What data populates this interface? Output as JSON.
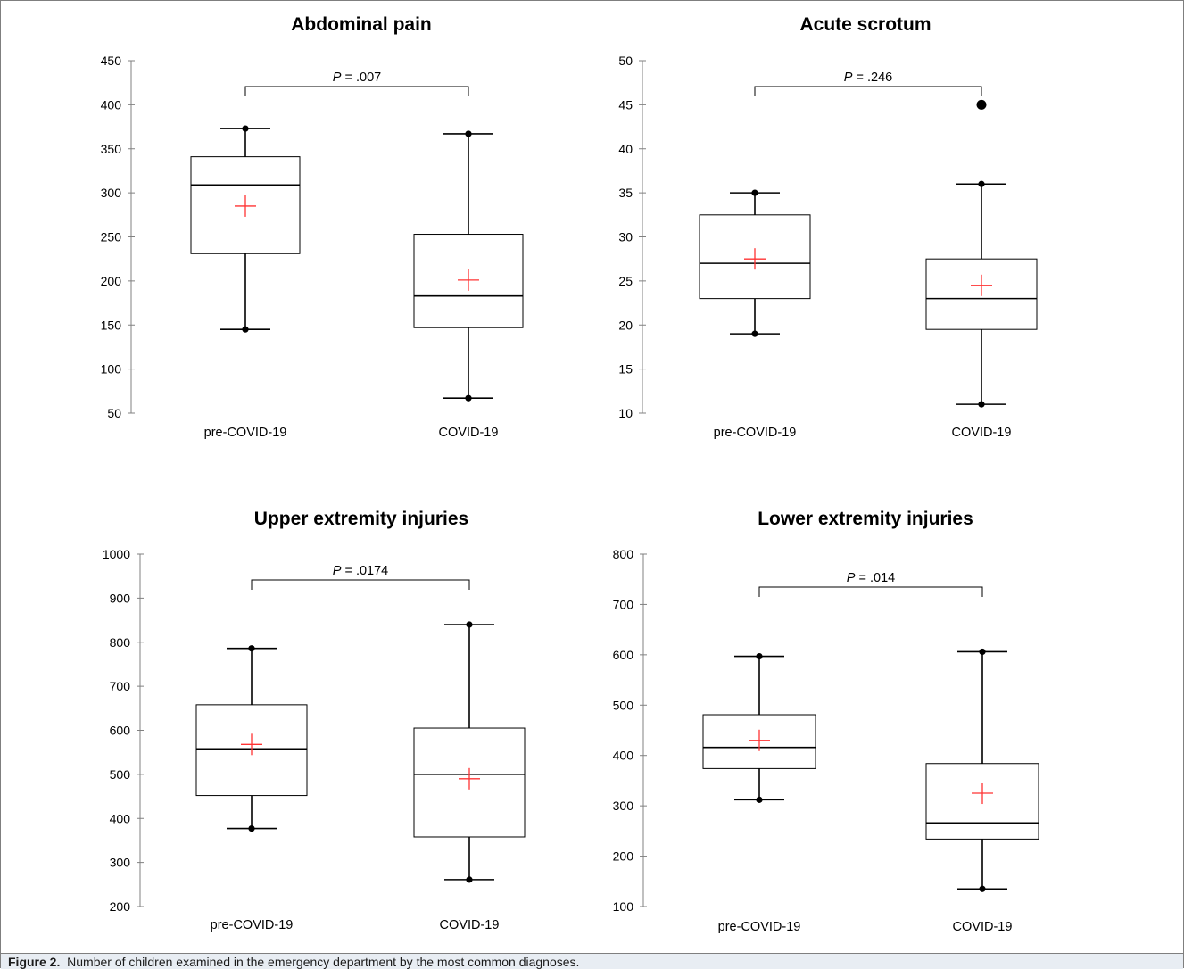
{
  "caption": {
    "label": "Figure 2.",
    "text": "Number of children examined in the emergency department by the most common diagnoses."
  },
  "colors": {
    "mean_marker": "#ff3333",
    "box_stroke": "#000000",
    "axis": "#808080"
  },
  "chart_data": [
    {
      "type": "box",
      "title": "Abdominal pain",
      "categories": [
        "pre-COVID-19",
        "COVID-19"
      ],
      "ylim": [
        50,
        450
      ],
      "yticks": [
        50,
        100,
        150,
        200,
        250,
        300,
        350,
        400,
        450
      ],
      "p_label": "P",
      "p_value": "= .007",
      "boxes": [
        {
          "min": 145,
          "q1": 231,
          "median": 309,
          "q3": 341,
          "max": 373,
          "mean": 285,
          "outliers": []
        },
        {
          "min": 67,
          "q1": 147,
          "median": 183,
          "q3": 253,
          "max": 367,
          "mean": 201,
          "outliers": []
        }
      ]
    },
    {
      "type": "box",
      "title": "Acute scrotum",
      "categories": [
        "pre-COVID-19",
        "COVID-19"
      ],
      "ylim": [
        10,
        50
      ],
      "yticks": [
        10,
        15,
        20,
        25,
        30,
        35,
        40,
        45,
        50
      ],
      "p_label": "P",
      "p_value": "= .246",
      "boxes": [
        {
          "min": 19,
          "q1": 23,
          "median": 27,
          "q3": 32.5,
          "max": 35,
          "mean": 27.5,
          "outliers": []
        },
        {
          "min": 11,
          "q1": 19.5,
          "median": 23,
          "q3": 27.5,
          "max": 36,
          "mean": 24.5,
          "outliers": [
            45
          ]
        }
      ]
    },
    {
      "type": "box",
      "title": "Upper extremity injuries",
      "categories": [
        "pre-COVID-19",
        "COVID-19"
      ],
      "ylim": [
        200,
        1000
      ],
      "yticks": [
        200,
        300,
        400,
        500,
        600,
        700,
        800,
        900,
        1000
      ],
      "p_label": "P",
      "p_value": "= .0174",
      "boxes": [
        {
          "min": 377,
          "q1": 452,
          "median": 558,
          "q3": 658,
          "max": 786,
          "mean": 568,
          "outliers": []
        },
        {
          "min": 261,
          "q1": 358,
          "median": 500,
          "q3": 605,
          "max": 840,
          "mean": 490,
          "outliers": []
        }
      ]
    },
    {
      "type": "box",
      "title": "Lower extremity injuries",
      "categories": [
        "pre-COVID-19",
        "COVID-19"
      ],
      "ylim": [
        100,
        800
      ],
      "yticks": [
        100,
        200,
        300,
        400,
        500,
        600,
        700,
        800
      ],
      "p_label": "P",
      "p_value": "= .014",
      "boxes": [
        {
          "min": 312,
          "q1": 374,
          "median": 416,
          "q3": 481,
          "max": 597,
          "mean": 430,
          "outliers": []
        },
        {
          "min": 135,
          "q1": 234,
          "median": 266,
          "q3": 384,
          "max": 606,
          "mean": 325,
          "outliers": []
        }
      ]
    }
  ]
}
